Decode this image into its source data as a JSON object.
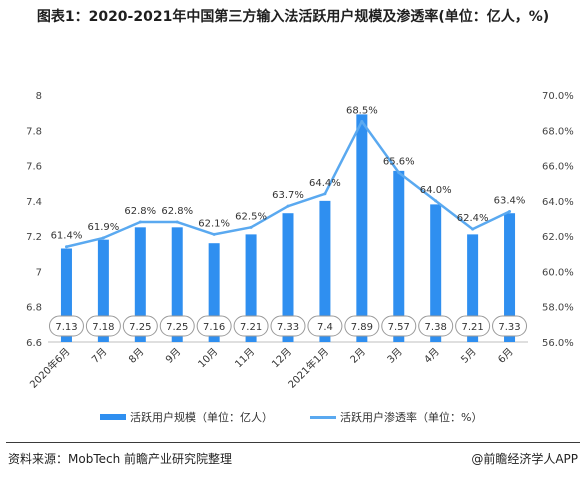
{
  "header": {
    "title": "图表1：2020-2021年中国第三方输入法活跃用户规模及渗透率(单位：亿人，%)"
  },
  "footer": {
    "source": "资料来源：MobTech 前瞻产业研究院整理",
    "brand": "@前瞻经济学人APP"
  },
  "colors": {
    "bar": "#2f8ff0",
    "line": "#5aa9f0",
    "label_box_border": "#9a9a9a"
  },
  "chart_data": {
    "type": "bar",
    "title": "图表1：2020-2021年中国第三方输入法活跃用户规模及渗透率(单位：亿人，%)",
    "categories": [
      "2020年6月",
      "7月",
      "8月",
      "9月",
      "10月",
      "11月",
      "12月",
      "2021年1月",
      "2月",
      "3月",
      "4月",
      "5月",
      "6月"
    ],
    "series": [
      {
        "name": "活跃用户规模（单位：亿人）",
        "type": "bar",
        "axis": "left",
        "values": [
          7.13,
          7.18,
          7.25,
          7.25,
          7.16,
          7.21,
          7.33,
          7.4,
          7.89,
          7.57,
          7.38,
          7.21,
          7.33
        ],
        "labels": [
          "7.13",
          "7.18",
          "7.25",
          "7.25",
          "7.16",
          "7.21",
          "7.33",
          "7.4",
          "7.89",
          "7.57",
          "7.38",
          "7.21",
          "7.33"
        ]
      },
      {
        "name": "活跃用户渗透率（单位：%）",
        "type": "line",
        "axis": "right",
        "values": [
          61.4,
          61.9,
          62.8,
          62.8,
          62.1,
          62.5,
          63.7,
          64.4,
          68.5,
          65.6,
          64.0,
          62.4,
          63.4
        ],
        "labels": [
          "61.4%",
          "61.9%",
          "62.8%",
          "62.8%",
          "62.1%",
          "62.5%",
          "63.7%",
          "64.4%",
          "68.5%",
          "65.6%",
          "64.0%",
          "62.4%",
          "63.4%"
        ]
      }
    ],
    "y_left": {
      "ylim": [
        6.6,
        8.0
      ],
      "ticks": [
        6.6,
        6.8,
        7.0,
        7.2,
        7.4,
        7.6,
        7.8,
        8.0
      ],
      "tick_labels": [
        "6.6",
        "6.8",
        "7",
        "7.2",
        "7.4",
        "7.6",
        "7.8",
        "8"
      ]
    },
    "y_right": {
      "ylim": [
        56.0,
        70.0
      ],
      "ticks": [
        56,
        58,
        60,
        62,
        64,
        66,
        68,
        70
      ],
      "tick_labels": [
        "56.0%",
        "58.0%",
        "60.0%",
        "62.0%",
        "64.0%",
        "66.0%",
        "68.0%",
        "70.0%"
      ]
    },
    "grid": false,
    "legend": "bottom"
  }
}
